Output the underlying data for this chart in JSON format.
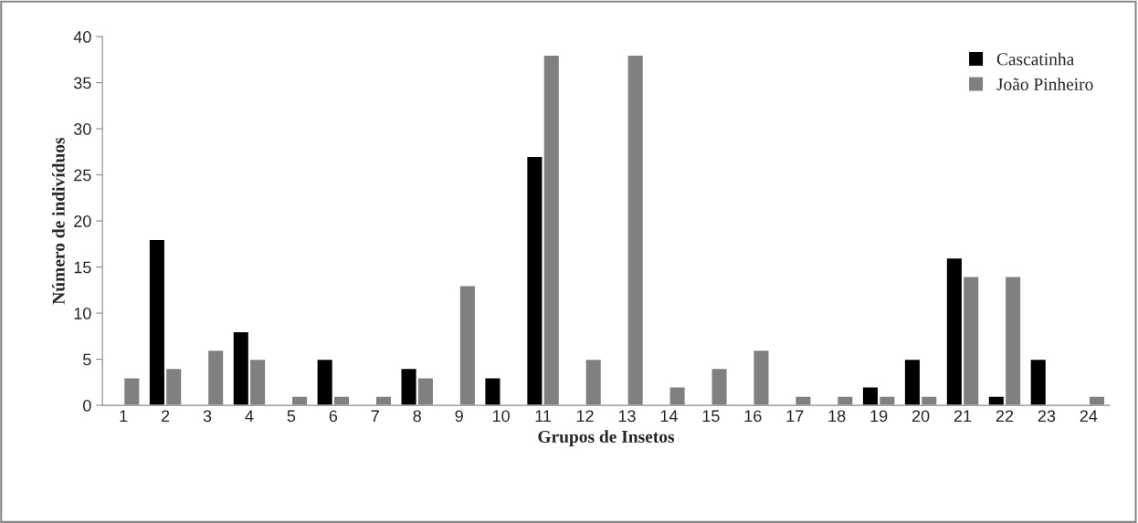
{
  "chart_data": {
    "type": "bar",
    "xlabel": "Grupos de Insetos",
    "ylabel": "Número de indivíduos",
    "categories": [
      "1",
      "2",
      "3",
      "4",
      "5",
      "6",
      "7",
      "8",
      "9",
      "10",
      "11",
      "12",
      "13",
      "14",
      "15",
      "16",
      "17",
      "18",
      "19",
      "20",
      "21",
      "22",
      "23",
      "24"
    ],
    "series": [
      {
        "name": "Cascatinha",
        "color": "#000000",
        "values": [
          null,
          18,
          null,
          8,
          null,
          5,
          null,
          4,
          null,
          3,
          27,
          null,
          null,
          null,
          null,
          null,
          null,
          null,
          2,
          5,
          16,
          1,
          5,
          null
        ]
      },
      {
        "name": "João Pinheiro",
        "color": "#808080",
        "values": [
          3,
          4,
          6,
          5,
          1,
          1,
          1,
          3,
          13,
          null,
          38,
          5,
          38,
          2,
          4,
          6,
          1,
          1,
          1,
          1,
          14,
          14,
          null,
          1
        ]
      }
    ],
    "ylim": [
      0,
      40
    ],
    "yticks": [
      0,
      5,
      10,
      15,
      20,
      25,
      30,
      35,
      40
    ],
    "grid": false,
    "legend": "top right"
  }
}
